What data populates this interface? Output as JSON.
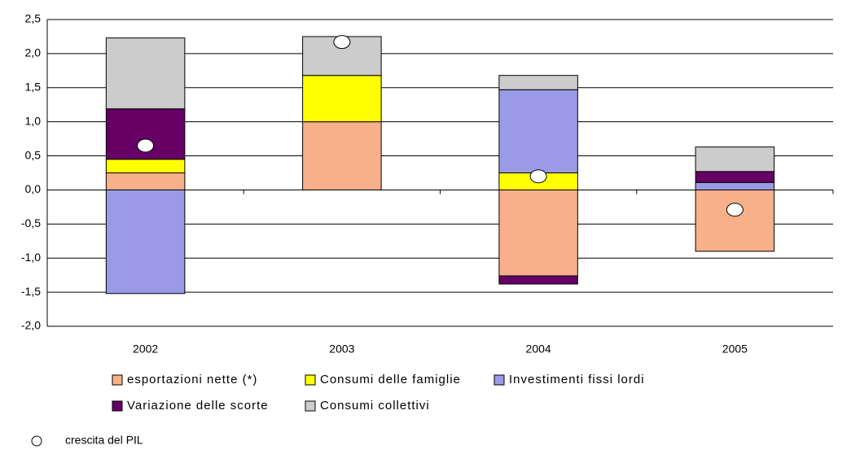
{
  "chart_data": {
    "type": "bar",
    "stacked": true,
    "categories": [
      "2002",
      "2003",
      "2004",
      "2005"
    ],
    "series": [
      {
        "name": "esportazioni nette (*)",
        "color": "#f7b08a",
        "values": [
          0.25,
          1.0,
          -1.26,
          -0.9
        ]
      },
      {
        "name": "Consumi delle famiglie",
        "color": "#ffff00",
        "values": [
          0.2,
          0.68,
          0.25,
          0
        ]
      },
      {
        "name": "Investimenti fissi lordi",
        "color": "#9a9ae6",
        "values": [
          -1.52,
          0,
          1.22,
          0.11
        ]
      },
      {
        "name": "Variazione delle scorte",
        "color": "#660066",
        "values": [
          0.74,
          0,
          -0.12,
          0.16
        ]
      },
      {
        "name": "Consumi collettivi",
        "color": "#cccccc",
        "values": [
          1.04,
          0.57,
          0.21,
          0.36
        ]
      }
    ],
    "points": {
      "name": "crescita del PIL",
      "type": "scatter",
      "color": "#ffffff",
      "values": [
        0.65,
        2.17,
        0.2,
        -0.29
      ]
    },
    "ylim": [
      -2.0,
      2.5
    ],
    "yticks": [
      {
        "value": -2.0,
        "label": "-2,0"
      },
      {
        "value": -1.5,
        "label": "-1,5"
      },
      {
        "value": -1.0,
        "label": "-1,0"
      },
      {
        "value": -0.5,
        "label": "-0,5"
      },
      {
        "value": 0,
        "label": "0,0"
      },
      {
        "value": 0.5,
        "label": "0,5"
      },
      {
        "value": 1.0,
        "label": "1,0"
      },
      {
        "value": 1.5,
        "label": "1,5"
      },
      {
        "value": 2.0,
        "label": "2,0"
      },
      {
        "value": 2.5,
        "label": "2,5"
      }
    ],
    "grid": true
  }
}
